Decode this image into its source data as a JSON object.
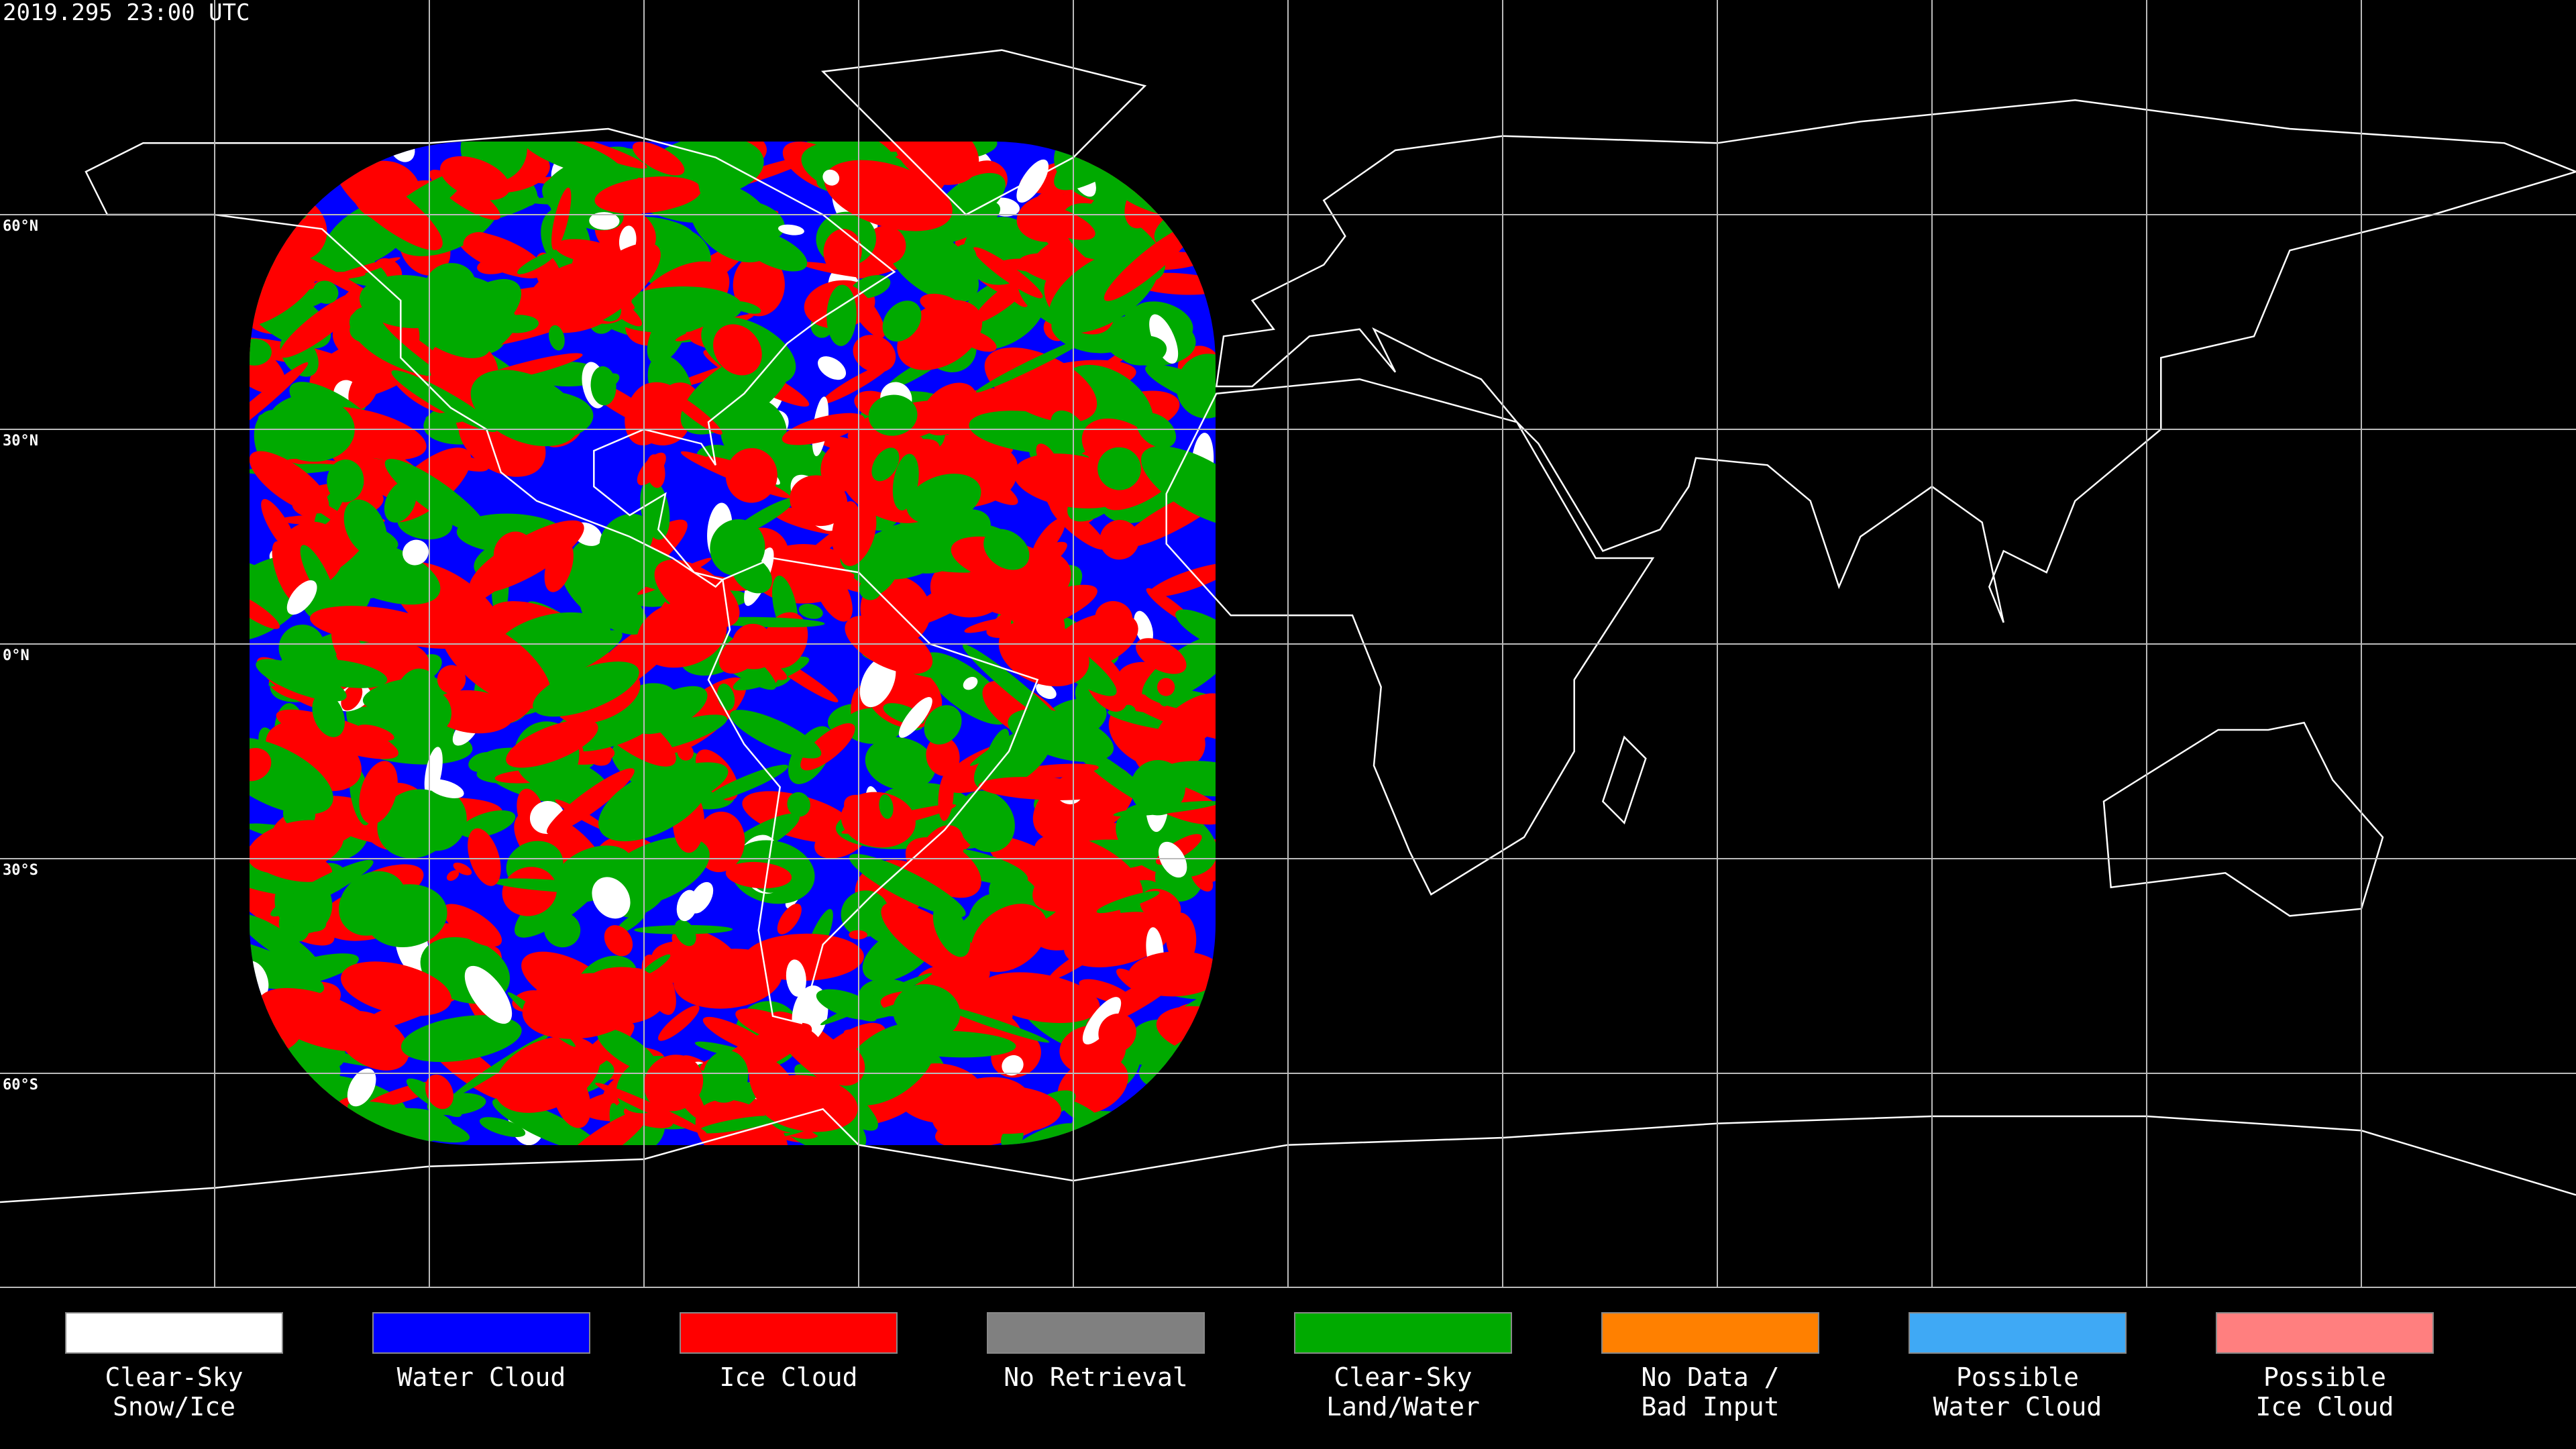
{
  "title": "2019.295 23:00 UTC",
  "latitude_labels": [
    "60°N",
    "30°N",
    "0°N",
    "30°S",
    "60°S"
  ],
  "legend": [
    {
      "label": [
        "Clear-Sky",
        "Snow/Ice"
      ],
      "color": "#ffffff"
    },
    {
      "label": [
        "Water Cloud"
      ],
      "color": "#0000ff"
    },
    {
      "label": [
        "Ice Cloud"
      ],
      "color": "#ff0000"
    },
    {
      "label": [
        "No Retrieval"
      ],
      "color": "#808080"
    },
    {
      "label": [
        "Clear-Sky",
        "Land/Water"
      ],
      "color": "#00aa00"
    },
    {
      "label": [
        "No Data /",
        "Bad Input"
      ],
      "color": "#ff8000"
    },
    {
      "label": [
        "Possible",
        "Water Cloud"
      ],
      "color": "#3fa9f5"
    },
    {
      "label": [
        "Possible",
        "Ice Cloud"
      ],
      "color": "#ff7f7f"
    }
  ]
}
